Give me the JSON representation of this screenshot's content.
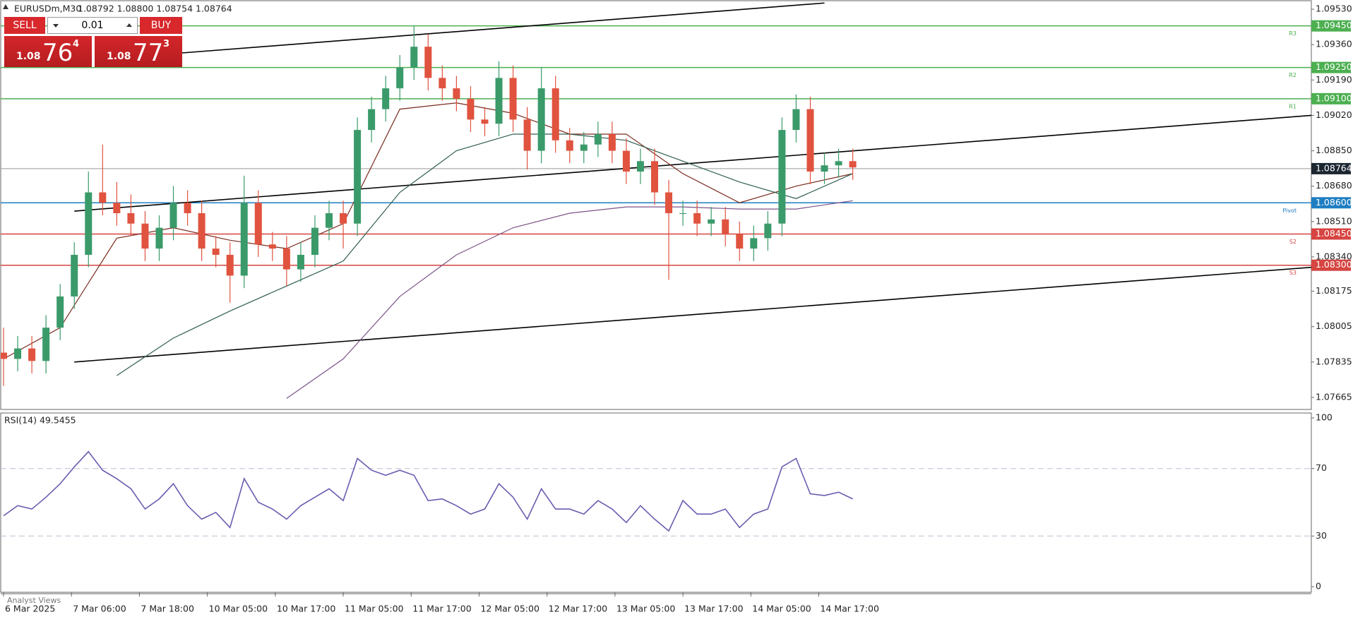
{
  "header": {
    "symbol": "EURUSDm,M30",
    "quote": "1.08792 1.08800 1.08754 1.08764"
  },
  "trade_panel": {
    "sell": "SELL",
    "buy": "BUY",
    "volume": "0.01",
    "sell_price": {
      "prefix": "1.08",
      "big": "76",
      "small": "4"
    },
    "buy_price": {
      "prefix": "1.08",
      "big": "77",
      "small": "3"
    }
  },
  "footer": "Analyst Views",
  "chart_data": [
    {
      "type": "candlestick",
      "up_color": "#3a9a6a",
      "down_color": "#e0533f",
      "xlim": [
        -1,
        462
      ],
      "ylim": [
        1.07607,
        1.09571
      ],
      "yticks": [
        {
          "value": 1.0953,
          "label": "1.09530"
        },
        {
          "value": 1.0936,
          "label": "1.09360"
        },
        {
          "value": 1.0919,
          "label": "1.09190"
        },
        {
          "value": 1.0902,
          "label": "1.09020"
        },
        {
          "value": 1.0885,
          "label": "1.08850"
        },
        {
          "value": 1.0868,
          "label": "1.08680"
        },
        {
          "value": 1.0851,
          "label": "1.08510"
        },
        {
          "value": 1.0834,
          "label": "1.08340"
        },
        {
          "value": 1.08175,
          "label": "1.08175"
        },
        {
          "value": 1.08005,
          "label": "1.08005"
        },
        {
          "value": 1.07835,
          "label": "1.07835"
        },
        {
          "value": 1.07665,
          "label": "1.07665"
        }
      ],
      "xticks": [
        {
          "value": 0,
          "label": "6 Mar 2025"
        },
        {
          "value": 24,
          "label": "7 Mar 06:00"
        },
        {
          "value": 48,
          "label": "7 Mar 18:00"
        },
        {
          "value": 72,
          "label": "10 Mar 05:00"
        },
        {
          "value": 96,
          "label": "10 Mar 17:00"
        },
        {
          "value": 120,
          "label": "11 Mar 05:00"
        },
        {
          "value": 144,
          "label": "11 Mar 17:00"
        },
        {
          "value": 168,
          "label": "12 Mar 05:00"
        },
        {
          "value": 192,
          "label": "12 Mar 17:00"
        },
        {
          "value": 216,
          "label": "13 Mar 05:00"
        },
        {
          "value": 240,
          "label": "13 Mar 17:00"
        },
        {
          "value": 264,
          "label": "14 Mar 05:00"
        },
        {
          "value": 288,
          "label": "14 Mar 17:00"
        }
      ],
      "x": [
        0,
        5,
        10,
        15,
        20,
        25,
        30,
        35,
        40,
        45,
        50,
        55,
        60,
        65,
        70,
        75,
        80,
        85,
        90,
        95,
        100,
        105,
        110,
        115,
        120,
        125,
        130,
        135,
        140,
        145,
        150,
        155,
        160,
        165,
        170,
        175,
        180,
        185,
        190,
        195,
        200,
        205,
        210,
        215,
        220,
        225,
        230,
        235,
        240,
        245,
        250,
        255,
        260,
        265,
        270,
        275,
        280,
        285,
        290,
        295,
        300
      ],
      "ohlc": [
        [
          1.0788,
          1.08,
          1.0772,
          1.0785
        ],
        [
          1.0785,
          1.0796,
          1.0779,
          1.079
        ],
        [
          1.079,
          1.0796,
          1.0778,
          1.0784
        ],
        [
          1.0784,
          1.0806,
          1.0778,
          1.08
        ],
        [
          1.08,
          1.0821,
          1.0794,
          1.0815
        ],
        [
          1.0815,
          1.0841,
          1.0809,
          1.0835
        ],
        [
          1.0835,
          1.0875,
          1.0829,
          1.0865
        ],
        [
          1.0865,
          1.0888,
          1.0854,
          1.086
        ],
        [
          1.086,
          1.087,
          1.0849,
          1.0855
        ],
        [
          1.0855,
          1.0864,
          1.0844,
          1.085
        ],
        [
          1.085,
          1.0856,
          1.0832,
          1.0838
        ],
        [
          1.0838,
          1.0854,
          1.0832,
          1.0848
        ],
        [
          1.0848,
          1.0868,
          1.0842,
          1.086
        ],
        [
          1.086,
          1.0866,
          1.0849,
          1.0855
        ],
        [
          1.0855,
          1.0861,
          1.0832,
          1.0838
        ],
        [
          1.0838,
          1.0844,
          1.0829,
          1.0835
        ],
        [
          1.0835,
          1.0841,
          1.0812,
          1.0825
        ],
        [
          1.0825,
          1.0873,
          1.0819,
          1.086
        ],
        [
          1.086,
          1.0866,
          1.0834,
          1.084
        ],
        [
          1.084,
          1.0846,
          1.0832,
          1.0838
        ],
        [
          1.0838,
          1.0844,
          1.082,
          1.0828
        ],
        [
          1.0828,
          1.0841,
          1.0822,
          1.0835
        ],
        [
          1.0835,
          1.0854,
          1.0829,
          1.0848
        ],
        [
          1.0848,
          1.0861,
          1.0842,
          1.0855
        ],
        [
          1.0855,
          1.0861,
          1.0838,
          1.085
        ],
        [
          1.085,
          1.0901,
          1.0844,
          1.0895
        ],
        [
          1.0895,
          1.0911,
          1.0889,
          1.0905
        ],
        [
          1.0905,
          1.0921,
          1.0899,
          1.0915
        ],
        [
          1.0915,
          1.0931,
          1.0909,
          1.0925
        ],
        [
          1.0925,
          1.0945,
          1.0919,
          1.0935
        ],
        [
          1.0935,
          1.0941,
          1.0914,
          1.092
        ],
        [
          1.092,
          1.0926,
          1.0909,
          1.0915
        ],
        [
          1.0915,
          1.0921,
          1.0904,
          1.091
        ],
        [
          1.091,
          1.0916,
          1.0894,
          1.09
        ],
        [
          1.09,
          1.0906,
          1.0892,
          1.0898
        ],
        [
          1.0898,
          1.0928,
          1.0892,
          1.092
        ],
        [
          1.092,
          1.0926,
          1.0894,
          1.09
        ],
        [
          1.09,
          1.0906,
          1.0876,
          1.0885
        ],
        [
          1.0885,
          1.0925,
          1.0879,
          1.0915
        ],
        [
          1.0915,
          1.0921,
          1.0884,
          1.089
        ],
        [
          1.089,
          1.0896,
          1.0879,
          1.0885
        ],
        [
          1.0885,
          1.0894,
          1.0879,
          1.0888
        ],
        [
          1.0888,
          1.0899,
          1.0882,
          1.0893
        ],
        [
          1.0893,
          1.0899,
          1.0879,
          1.0885
        ],
        [
          1.0885,
          1.0891,
          1.0869,
          1.0875
        ],
        [
          1.0875,
          1.0886,
          1.0869,
          1.088
        ],
        [
          1.088,
          1.0886,
          1.0859,
          1.0865
        ],
        [
          1.0865,
          1.0871,
          1.0823,
          1.0855
        ],
        [
          1.0855,
          1.0861,
          1.0849,
          1.0855
        ],
        [
          1.0855,
          1.0861,
          1.0844,
          1.085
        ],
        [
          1.085,
          1.0858,
          1.0844,
          1.0852
        ],
        [
          1.0852,
          1.0858,
          1.0839,
          1.0845
        ],
        [
          1.0845,
          1.0851,
          1.0832,
          1.0838
        ],
        [
          1.0838,
          1.0849,
          1.0832,
          1.0843
        ],
        [
          1.0843,
          1.0856,
          1.0837,
          1.085
        ],
        [
          1.085,
          1.0901,
          1.0844,
          1.0895
        ],
        [
          1.0895,
          1.0912,
          1.0889,
          1.0905
        ],
        [
          1.0905,
          1.0911,
          1.0869,
          1.0875
        ],
        [
          1.0875,
          1.0884,
          1.0869,
          1.0878
        ],
        [
          1.0878,
          1.0886,
          1.0872,
          1.088
        ],
        [
          1.088,
          1.0886,
          1.0871,
          1.0877
        ]
      ],
      "series": [
        {
          "color": "#7a2a1e",
          "x": [
            0,
            20,
            40,
            60,
            80,
            100,
            120,
            140,
            160,
            180,
            200,
            220,
            240,
            260,
            280,
            300
          ],
          "values": [
            1.0785,
            1.08,
            1.0843,
            1.0848,
            1.0842,
            1.0838,
            1.085,
            1.0905,
            1.0908,
            1.0903,
            1.0893,
            1.0893,
            1.0874,
            1.086,
            1.0868,
            1.0874
          ]
        },
        {
          "color": "#2f5d50",
          "x": [
            0,
            20,
            40,
            60,
            80,
            100,
            120,
            140,
            160,
            180,
            200,
            220,
            240,
            260,
            280,
            300
          ],
          "values": [
            null,
            null,
            1.0777,
            1.0795,
            1.0808,
            1.082,
            1.0832,
            1.0865,
            1.0885,
            1.0893,
            1.0893,
            1.089,
            1.088,
            1.087,
            1.0862,
            1.0874
          ]
        },
        {
          "color": "#7c5289",
          "x": [
            0,
            20,
            40,
            60,
            80,
            100,
            120,
            140,
            160,
            180,
            200,
            220,
            240,
            260,
            280,
            300
          ],
          "values": [
            null,
            null,
            null,
            null,
            null,
            1.0766,
            1.0785,
            1.0815,
            1.0835,
            1.0848,
            1.0855,
            1.0858,
            1.0858,
            1.0857,
            1.0857,
            1.0861
          ]
        }
      ],
      "trendlines": [
        {
          "x": [
            63,
            290
          ],
          "values": [
            1.0932,
            1.0956
          ]
        },
        {
          "x": [
            25,
            462
          ],
          "values": [
            1.0856,
            1.0902
          ]
        },
        {
          "x": [
            25,
            462
          ],
          "values": [
            1.07835,
            1.0829
          ]
        }
      ],
      "levels": [
        {
          "label": "R3",
          "value": 1.0945,
          "value_label": "1.09450",
          "color": "#4caf50"
        },
        {
          "label": "R2",
          "value": 1.0925,
          "value_label": "1.09250",
          "color": "#4caf50"
        },
        {
          "label": "R1",
          "value": 1.091,
          "value_label": "1.09100",
          "color": "#4caf50"
        },
        {
          "label": "Pivot",
          "value": 1.086,
          "value_label": "1.08600",
          "color": "#1f7ec2"
        },
        {
          "label": "S2",
          "value": 1.0845,
          "value_label": "1.08450",
          "color": "#d64541"
        },
        {
          "label": "S3",
          "value": 1.083,
          "value_label": "1.08300",
          "color": "#d64541"
        }
      ],
      "last_price": {
        "value": 1.08764,
        "value_label": "1.08764",
        "color": "#1b2631"
      }
    },
    {
      "type": "line",
      "title": "RSI(14) 49.5455",
      "color": "#6a5cb0",
      "ylim": [
        0,
        100
      ],
      "yticks": [
        0,
        30,
        70,
        100
      ],
      "levels": [
        30,
        70
      ],
      "values": [
        42,
        48,
        46,
        53,
        61,
        71,
        80,
        69,
        64,
        58,
        46,
        52,
        61,
        48,
        40,
        44,
        35,
        64,
        50,
        46,
        40,
        48,
        53,
        58,
        51,
        76,
        69,
        66,
        69,
        66,
        51,
        52,
        48,
        43,
        46,
        61,
        53,
        40,
        58,
        46,
        46,
        43,
        51,
        46,
        38,
        48,
        40,
        33,
        51,
        43,
        43,
        46,
        35,
        43,
        46,
        71,
        76,
        55,
        54,
        56,
        52
      ]
    }
  ]
}
